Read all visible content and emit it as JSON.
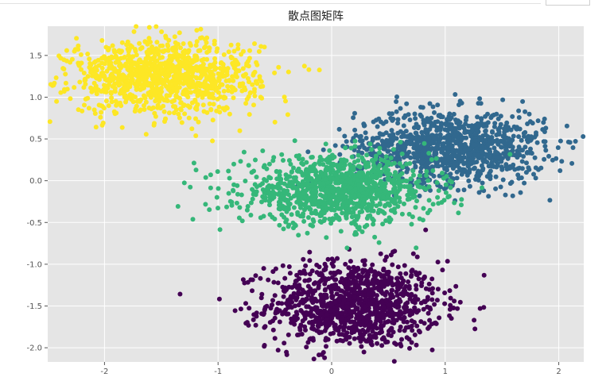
{
  "chart_data": {
    "type": "scatter",
    "title": "散点图矩阵",
    "xlabel": "",
    "ylabel": "",
    "xlim": [
      -2.5,
      2.22
    ],
    "ylim": [
      -2.17,
      1.85
    ],
    "grid": true,
    "background": "#e5e5e5",
    "grid_color": "#ffffff",
    "x_ticks": [
      -2,
      -1,
      0,
      1,
      2
    ],
    "x_tick_labels": [
      "-2",
      "-1",
      "0",
      "1",
      "2"
    ],
    "y_ticks": [
      -2.0,
      -1.5,
      -1.0,
      -0.5,
      0.0,
      0.5,
      1.0,
      1.5
    ],
    "y_tick_labels": [
      "-2.0",
      "-1.5",
      "-1.0",
      "-0.5",
      "0.0",
      "0.5",
      "1.0",
      "1.5"
    ],
    "clusters": [
      {
        "color": "#440154",
        "center": [
          0.2,
          -1.48
        ],
        "spread": [
          0.38,
          0.26
        ],
        "count": 1100
      },
      {
        "color": "#31688e",
        "center": [
          1.05,
          0.4
        ],
        "spread": [
          0.42,
          0.22
        ],
        "count": 1100
      },
      {
        "color": "#35b779",
        "center": [
          0.05,
          -0.12
        ],
        "spread": [
          0.42,
          0.2
        ],
        "count": 1100
      },
      {
        "color": "#fde725",
        "center": [
          -1.48,
          1.25
        ],
        "spread": [
          0.42,
          0.22
        ],
        "count": 1100
      }
    ]
  }
}
